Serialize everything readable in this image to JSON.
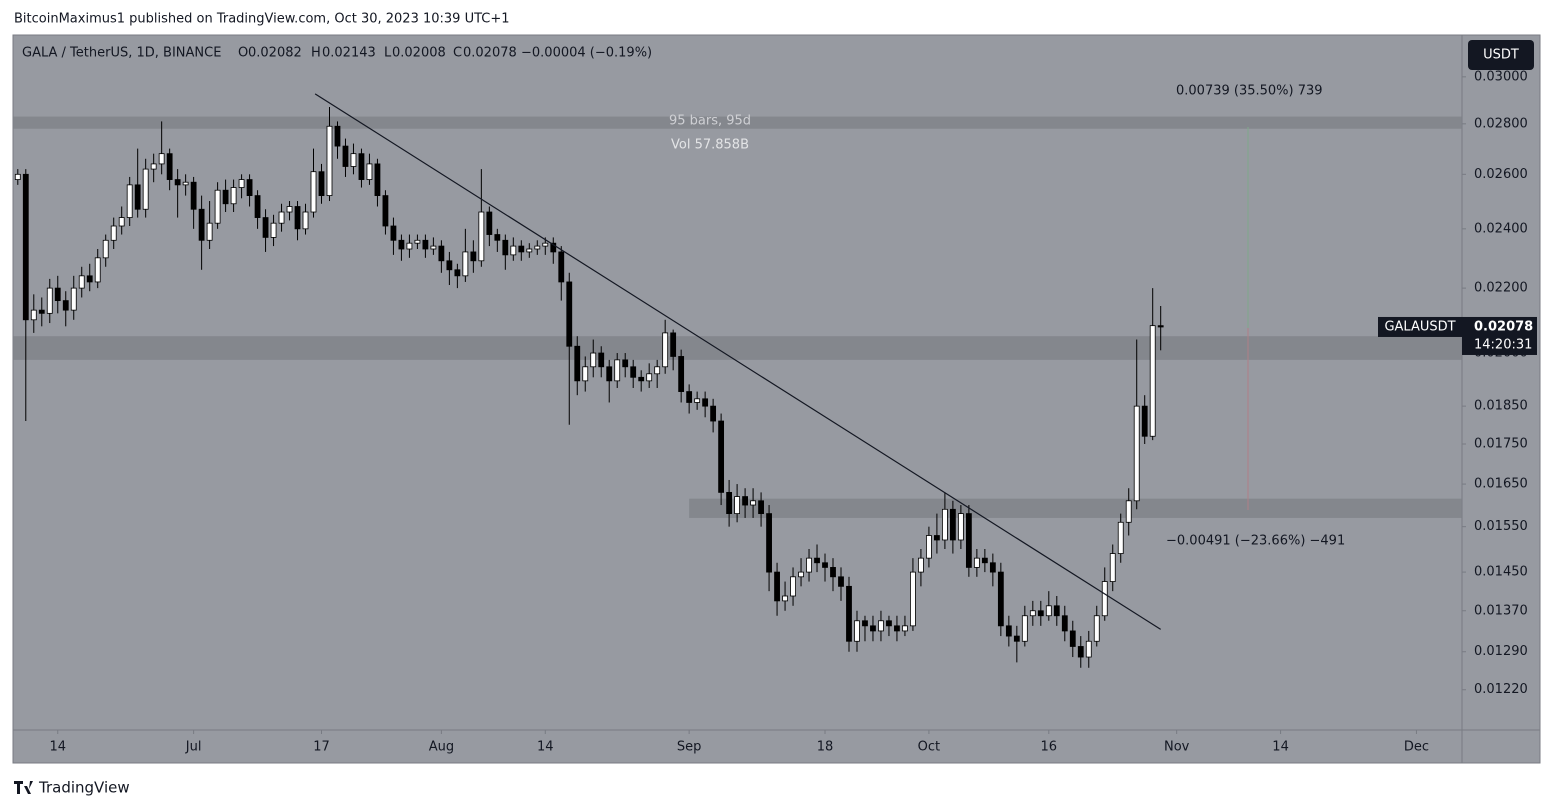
{
  "header": {
    "byline": "BitcoinMaximus1 published on TradingView.com, Oct 30, 2023 10:39 UTC+1"
  },
  "chart_data": {
    "type": "candlestick",
    "symbol": "GALA / TetherUS, 1D, BINANCE",
    "legend_labels": [
      "O",
      "H",
      "L",
      "C"
    ],
    "change": "−0.00004 (−0.19%)",
    "ticker": "GALAUSDT",
    "countdown": "14:20:31",
    "currency": "USDT",
    "up_color": "#ffffff",
    "down_color": "#000000",
    "log_scale": true,
    "open": [
      0.0258,
      0.026,
      0.021,
      0.0213,
      0.0212,
      0.022,
      0.0216,
      0.0213,
      0.022,
      0.0224,
      0.0222,
      0.023,
      0.0236,
      0.0241,
      0.0244,
      0.0256,
      0.0247,
      0.0262,
      0.0264,
      0.0268,
      0.0258,
      0.0256,
      0.0257,
      0.0247,
      0.0236,
      0.0242,
      0.0254,
      0.0249,
      0.0255,
      0.0258,
      0.0252,
      0.0244,
      0.0237,
      0.0242,
      0.0246,
      0.0248,
      0.024,
      0.0246,
      0.0261,
      0.0252,
      0.0279,
      0.0271,
      0.0263,
      0.0268,
      0.0258,
      0.0264,
      0.0252,
      0.0241,
      0.0236,
      0.0233,
      0.0235,
      0.0236,
      0.0233,
      0.0234,
      0.0229,
      0.0226,
      0.0224,
      0.0232,
      0.0229,
      0.0246,
      0.0238,
      0.0236,
      0.0231,
      0.0234,
      0.0232,
      0.0233,
      0.0234,
      0.0235,
      0.0232,
      0.0222,
      0.0202,
      0.0192,
      0.0196,
      0.02,
      0.0196,
      0.0192,
      0.0198,
      0.0196,
      0.0193,
      0.0192,
      0.0194,
      0.0196,
      0.0206,
      0.0199,
      0.0189,
      0.0186,
      0.0187,
      0.0185,
      0.0181,
      0.0163,
      0.0158,
      0.0162,
      0.016,
      0.0161,
      0.0158,
      0.0145,
      0.0139,
      0.014,
      0.0144,
      0.0145,
      0.0148,
      0.0147,
      0.0146,
      0.0144,
      0.0142,
      0.0131,
      0.0135,
      0.0134,
      0.0133,
      0.0135,
      0.0134,
      0.0133,
      0.0134,
      0.0145,
      0.0148,
      0.0153,
      0.0152,
      0.0159,
      0.0152,
      0.0158,
      0.0146,
      0.0148,
      0.0147,
      0.0145,
      0.0134,
      0.0132,
      0.0131,
      0.0136,
      0.0137,
      0.0136,
      0.0138,
      0.0136,
      0.0133,
      0.013,
      0.0128,
      0.0131,
      0.0136,
      0.0143,
      0.0149,
      0.0156,
      0.0161,
      0.0185,
      0.0177,
      0.02082
    ],
    "high": [
      0.0262,
      0.0262,
      0.0218,
      0.0217,
      0.0223,
      0.0224,
      0.0219,
      0.0224,
      0.0227,
      0.0228,
      0.0233,
      0.0238,
      0.0244,
      0.0248,
      0.0259,
      0.027,
      0.0266,
      0.0268,
      0.0281,
      0.027,
      0.0262,
      0.026,
      0.0259,
      0.0252,
      0.025,
      0.0257,
      0.0258,
      0.0258,
      0.026,
      0.026,
      0.0254,
      0.0247,
      0.0245,
      0.0249,
      0.025,
      0.025,
      0.0249,
      0.027,
      0.0264,
      0.0287,
      0.0281,
      0.0274,
      0.0272,
      0.027,
      0.0268,
      0.0266,
      0.0254,
      0.0244,
      0.0238,
      0.0238,
      0.0238,
      0.0238,
      0.0237,
      0.0236,
      0.0232,
      0.0228,
      0.024,
      0.0236,
      0.0262,
      0.0248,
      0.024,
      0.0238,
      0.0237,
      0.0236,
      0.0235,
      0.0236,
      0.0237,
      0.0237,
      0.0234,
      0.0225,
      0.0205,
      0.0199,
      0.0204,
      0.0202,
      0.0198,
      0.02,
      0.02,
      0.0198,
      0.0195,
      0.0197,
      0.0198,
      0.021,
      0.0207,
      0.0201,
      0.0191,
      0.0189,
      0.0189,
      0.0187,
      0.0183,
      0.0166,
      0.0165,
      0.0164,
      0.0164,
      0.0163,
      0.016,
      0.0147,
      0.0143,
      0.0146,
      0.0148,
      0.015,
      0.0151,
      0.0149,
      0.0148,
      0.0146,
      0.0144,
      0.0137,
      0.0136,
      0.0136,
      0.0137,
      0.0136,
      0.0136,
      0.0136,
      0.0148,
      0.015,
      0.0155,
      0.0158,
      0.0163,
      0.0161,
      0.016,
      0.016,
      0.015,
      0.015,
      0.0149,
      0.0147,
      0.0136,
      0.0134,
      0.0138,
      0.0139,
      0.0139,
      0.0141,
      0.014,
      0.0138,
      0.0135,
      0.0132,
      0.0133,
      0.0138,
      0.0146,
      0.0151,
      0.0158,
      0.0164,
      0.0204,
      0.0188,
      0.022,
      0.02143
    ],
    "low": [
      0.0256,
      0.0181,
      0.0206,
      0.0208,
      0.0209,
      0.0212,
      0.0208,
      0.021,
      0.0217,
      0.0219,
      0.022,
      0.0227,
      0.0233,
      0.0238,
      0.0241,
      0.0244,
      0.0244,
      0.0257,
      0.026,
      0.0254,
      0.0244,
      0.0252,
      0.024,
      0.0226,
      0.0233,
      0.024,
      0.0246,
      0.0246,
      0.0251,
      0.0248,
      0.024,
      0.0232,
      0.0234,
      0.0239,
      0.0243,
      0.0236,
      0.0238,
      0.0244,
      0.0249,
      0.025,
      0.0266,
      0.0259,
      0.026,
      0.0255,
      0.0256,
      0.0248,
      0.0238,
      0.0231,
      0.0229,
      0.023,
      0.0233,
      0.023,
      0.0231,
      0.0225,
      0.0221,
      0.022,
      0.0222,
      0.0225,
      0.0227,
      0.0234,
      0.0232,
      0.0226,
      0.0229,
      0.0229,
      0.023,
      0.0231,
      0.0231,
      0.0228,
      0.0216,
      0.018,
      0.0188,
      0.0189,
      0.0193,
      0.0193,
      0.0186,
      0.019,
      0.0193,
      0.019,
      0.0189,
      0.019,
      0.019,
      0.0194,
      0.0195,
      0.0186,
      0.0183,
      0.0184,
      0.0182,
      0.0178,
      0.016,
      0.0155,
      0.0156,
      0.0157,
      0.0157,
      0.0155,
      0.0141,
      0.0136,
      0.0137,
      0.0138,
      0.0142,
      0.0143,
      0.0145,
      0.0143,
      0.0141,
      0.0139,
      0.0129,
      0.0129,
      0.0131,
      0.0131,
      0.0131,
      0.0132,
      0.0131,
      0.0132,
      0.0133,
      0.0142,
      0.0146,
      0.0149,
      0.015,
      0.0149,
      0.015,
      0.0144,
      0.0144,
      0.0145,
      0.0142,
      0.0132,
      0.013,
      0.0127,
      0.013,
      0.0134,
      0.0134,
      0.0135,
      0.0134,
      0.0131,
      0.0128,
      0.0126,
      0.0126,
      0.013,
      0.0135,
      0.0141,
      0.0147,
      0.0153,
      0.0159,
      0.0175,
      0.0176,
      0.02008
    ],
    "close": [
      0.026,
      0.021,
      0.0213,
      0.0212,
      0.022,
      0.0216,
      0.0213,
      0.022,
      0.0224,
      0.0222,
      0.023,
      0.0236,
      0.0241,
      0.0244,
      0.0256,
      0.0247,
      0.0262,
      0.0264,
      0.0268,
      0.0258,
      0.0256,
      0.0257,
      0.0247,
      0.0236,
      0.0242,
      0.0254,
      0.0249,
      0.0255,
      0.0258,
      0.0252,
      0.0244,
      0.0237,
      0.0242,
      0.0246,
      0.0248,
      0.024,
      0.0246,
      0.0261,
      0.0252,
      0.0279,
      0.0271,
      0.0263,
      0.0268,
      0.0258,
      0.0264,
      0.0252,
      0.0241,
      0.0236,
      0.0233,
      0.0235,
      0.0236,
      0.0233,
      0.0234,
      0.0229,
      0.0226,
      0.0224,
      0.0232,
      0.0229,
      0.0246,
      0.0238,
      0.0236,
      0.0231,
      0.0234,
      0.0232,
      0.0233,
      0.0234,
      0.0235,
      0.0232,
      0.0222,
      0.0202,
      0.0192,
      0.0196,
      0.02,
      0.0196,
      0.0192,
      0.0198,
      0.0196,
      0.0193,
      0.0192,
      0.0194,
      0.0196,
      0.0206,
      0.0199,
      0.0189,
      0.0186,
      0.0187,
      0.0185,
      0.0181,
      0.0163,
      0.0158,
      0.0162,
      0.016,
      0.0161,
      0.0158,
      0.0145,
      0.0139,
      0.014,
      0.0144,
      0.0145,
      0.0148,
      0.0147,
      0.0146,
      0.0144,
      0.0142,
      0.0131,
      0.0135,
      0.0134,
      0.0133,
      0.0135,
      0.0134,
      0.0133,
      0.0134,
      0.0145,
      0.0148,
      0.0153,
      0.0152,
      0.0159,
      0.0152,
      0.0158,
      0.0146,
      0.0148,
      0.0147,
      0.0145,
      0.0134,
      0.0132,
      0.0131,
      0.0136,
      0.0137,
      0.0136,
      0.0138,
      0.0136,
      0.0133,
      0.013,
      0.0128,
      0.0131,
      0.0136,
      0.0143,
      0.0149,
      0.0156,
      0.0161,
      0.0185,
      0.0177,
      0.02082,
      0.02078
    ],
    "xlim": [
      -0.6,
      180.7
    ],
    "xticks": [
      {
        "value": 5,
        "label": "14"
      },
      {
        "value": 22,
        "label": "Jul"
      },
      {
        "value": 38,
        "label": "17"
      },
      {
        "value": 53,
        "label": "Aug"
      },
      {
        "value": 66,
        "label": "14"
      },
      {
        "value": 84,
        "label": "Sep"
      },
      {
        "value": 101,
        "label": "18"
      },
      {
        "value": 114,
        "label": "Oct"
      },
      {
        "value": 129,
        "label": "16"
      },
      {
        "value": 145,
        "label": "Nov"
      },
      {
        "value": 158,
        "label": "14"
      },
      {
        "value": 175,
        "label": "Dec"
      }
    ],
    "ylim": [
      0.0115,
      0.0319
    ],
    "yticks": [
      {
        "value": 0.03,
        "label": "0.03000"
      },
      {
        "value": 0.028,
        "label": "0.02800"
      },
      {
        "value": 0.026,
        "label": "0.02600"
      },
      {
        "value": 0.024,
        "label": "0.02400"
      },
      {
        "value": 0.022,
        "label": "0.02200"
      },
      {
        "value": 0.02,
        "label": "0.02000"
      },
      {
        "value": 0.0185,
        "label": "0.01850"
      },
      {
        "value": 0.0175,
        "label": "0.01750"
      },
      {
        "value": 0.0165,
        "label": "0.01650"
      },
      {
        "value": 0.0155,
        "label": "0.01550"
      },
      {
        "value": 0.0145,
        "label": "0.01450"
      },
      {
        "value": 0.0137,
        "label": "0.01370"
      },
      {
        "value": 0.0129,
        "label": "0.01290"
      },
      {
        "value": 0.0122,
        "label": "0.01220"
      }
    ],
    "zones": [
      {
        "from": 0.0278,
        "to": 0.0283
      },
      {
        "from": 0.0198,
        "to": 0.0205
      },
      {
        "from": 0.0157,
        "to": 0.01615,
        "x_start": 84
      }
    ],
    "trendline": {
      "x": [
        37.2,
        143
      ],
      "y": [
        0.02926,
        0.01333
      ]
    },
    "measure": {
      "bars_label": "95 bars, 95d",
      "volume_label": "Vol 57.858B",
      "up_label": "0.00739 (35.50%) 739",
      "down_label": "−0.00491 (−23.66%) −491"
    }
  },
  "footer": {
    "brand": "TradingView"
  }
}
